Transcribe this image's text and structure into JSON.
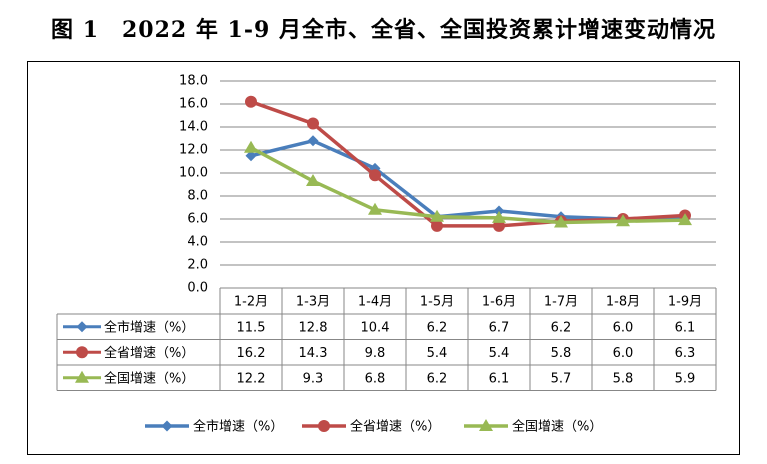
{
  "title": "图 1　2022 年 1-9 月全市、全省、全国投资累计增速变动情况",
  "colors": {
    "series1": "#4A7EBB",
    "series2": "#BE4B48",
    "series3": "#98B954",
    "grid": "#878787"
  },
  "chart_data": {
    "type": "line",
    "title": "图 1　2022 年 1-9 月全市、全省、全国投资累计增速变动情况",
    "categories": [
      "1-2月",
      "1-3月",
      "1-4月",
      "1-5月",
      "1-6月",
      "1-7月",
      "1-8月",
      "1-9月"
    ],
    "y_ticks": [
      "0.0",
      "2.0",
      "4.0",
      "6.0",
      "8.0",
      "10.0",
      "12.0",
      "14.0",
      "16.0",
      "18.0"
    ],
    "ylim": [
      0,
      18
    ],
    "grid": true,
    "legend_position": "bottom",
    "series": [
      {
        "name": "全市增速（%）",
        "marker": "diamond",
        "values": [
          11.5,
          12.8,
          10.4,
          6.2,
          6.7,
          6.2,
          6.0,
          6.1
        ],
        "labels": [
          "11.5",
          "12.8",
          "10.4",
          "6.2",
          "6.7",
          "6.2",
          "6.0",
          "6.1"
        ]
      },
      {
        "name": "全省增速（%）",
        "marker": "circle",
        "values": [
          16.2,
          14.3,
          9.8,
          5.4,
          5.4,
          5.8,
          6.0,
          6.3
        ],
        "labels": [
          "16.2",
          "14.3",
          "9.8",
          "5.4",
          "5.4",
          "5.8",
          "6.0",
          "6.3"
        ]
      },
      {
        "name": "全国增速（%）",
        "marker": "triangle",
        "values": [
          12.2,
          9.3,
          6.8,
          6.2,
          6.1,
          5.7,
          5.8,
          5.9
        ],
        "labels": [
          "12.2",
          "9.3",
          "6.8",
          "6.2",
          "6.1",
          "5.7",
          "5.8",
          "5.9"
        ]
      }
    ]
  }
}
